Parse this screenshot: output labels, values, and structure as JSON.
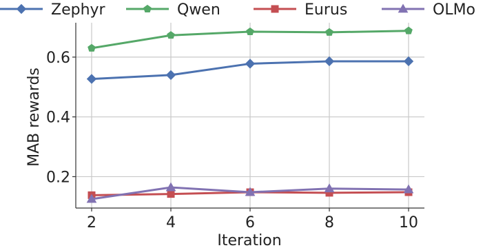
{
  "chart_data": {
    "type": "line",
    "xlabel": "Iteration",
    "ylabel": "MAB rewards",
    "x": [
      2,
      4,
      6,
      8,
      10
    ],
    "xlim": [
      1.6,
      10.4
    ],
    "ylim": [
      0.095,
      0.715
    ],
    "xticks": [
      2,
      4,
      6,
      8,
      10
    ],
    "yticks": [
      0.2,
      0.4,
      0.6
    ],
    "ytick_labels": [
      "0.2",
      "0.4",
      "0.6"
    ],
    "grid": true,
    "legend_position": "top",
    "series": [
      {
        "name": "Zephyr",
        "color": "#4c72b0",
        "marker": "diamond",
        "values": [
          0.527,
          0.54,
          0.578,
          0.586,
          0.586
        ]
      },
      {
        "name": "Qwen",
        "color": "#55a868",
        "marker": "pentagon",
        "values": [
          0.63,
          0.673,
          0.685,
          0.683,
          0.688
        ]
      },
      {
        "name": "Eurus",
        "color": "#c44e52",
        "marker": "square",
        "values": [
          0.138,
          0.142,
          0.148,
          0.146,
          0.148
        ]
      },
      {
        "name": "OLMo",
        "color": "#8172b2",
        "marker": "triangle",
        "values": [
          0.125,
          0.164,
          0.148,
          0.16,
          0.157
        ]
      }
    ]
  }
}
